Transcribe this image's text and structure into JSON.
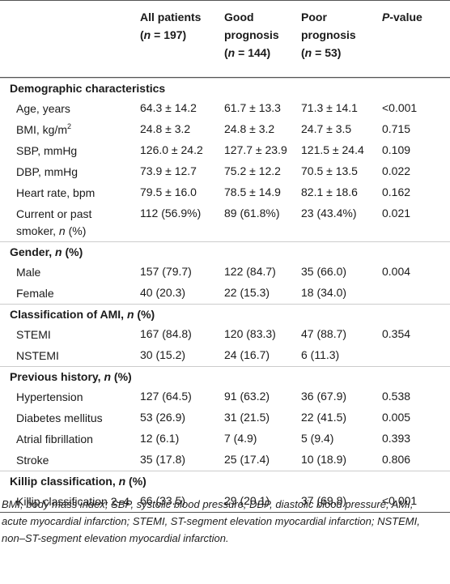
{
  "table": {
    "columns": [
      [
        [
          "All patients"
        ],
        [
          "(",
          {
            "text": "n",
            "style": "italic"
          },
          " = 197)"
        ]
      ],
      [
        [
          "Good"
        ],
        [
          "prognosis"
        ],
        [
          "(",
          {
            "text": "n",
            "style": "italic"
          },
          " = 144)"
        ]
      ],
      [
        [
          "Poor"
        ],
        [
          "prognosis"
        ],
        [
          "(",
          {
            "text": "n",
            "style": "italic"
          },
          " = 53)"
        ]
      ],
      [
        [
          {
            "text": "P",
            "style": "italic"
          },
          "-value"
        ]
      ]
    ],
    "sections": [
      {
        "title": [
          "Demographic characteristics"
        ],
        "rows": [
          [
            [
              "Age, years"
            ],
            "64.3 ± 14.2",
            "61.7 ± 13.3",
            "71.3 ± 14.1",
            "<0.001"
          ],
          [
            [
              "BMI, kg/m",
              {
                "text": "2",
                "style": "sup"
              }
            ],
            "24.8 ± 3.2",
            "24.8 ± 3.2",
            "24.7 ± 3.5",
            "0.715"
          ],
          [
            [
              "SBP, mmHg"
            ],
            "126.0 ± 24.2",
            "127.7 ± 23.9",
            "121.5 ± 24.4",
            "0.109"
          ],
          [
            [
              "DBP, mmHg"
            ],
            "73.9 ± 12.7",
            "75.2 ± 12.2",
            "70.5 ± 13.5",
            "0.022"
          ],
          [
            [
              "Heart rate, bpm"
            ],
            "79.5 ± 16.0",
            "78.5 ± 14.9",
            "82.1 ± 18.6",
            "0.162"
          ],
          [
            [
              "Current or past smoker, ",
              {
                "text": "n",
                "style": "italic"
              },
              " (%)"
            ],
            "112 (56.9%)",
            "89 (61.8%)",
            "23 (43.4%)",
            "0.021"
          ]
        ]
      },
      {
        "title": [
          "Gender, ",
          {
            "text": "n",
            "style": "italic"
          },
          " (%)"
        ],
        "rows": [
          [
            [
              "Male"
            ],
            "157 (79.7)",
            "122 (84.7)",
            "35 (66.0)",
            "0.004"
          ],
          [
            [
              "Female"
            ],
            "40 (20.3)",
            "22 (15.3)",
            "18 (34.0)",
            ""
          ]
        ]
      },
      {
        "title": [
          "Classification of AMI, ",
          {
            "text": "n",
            "style": "italic"
          },
          " (%)"
        ],
        "rows": [
          [
            [
              "STEMI"
            ],
            "167 (84.8)",
            "120 (83.3)",
            "47 (88.7)",
            "0.354"
          ],
          [
            [
              "NSTEMI"
            ],
            "30 (15.2)",
            "24 (16.7)",
            "6 (11.3)",
            ""
          ]
        ]
      },
      {
        "title": [
          "Previous history, ",
          {
            "text": "n",
            "style": "italic"
          },
          " (%)"
        ],
        "rows": [
          [
            [
              "Hypertension"
            ],
            "127 (64.5)",
            "91 (63.2)",
            "36 (67.9)",
            "0.538"
          ],
          [
            [
              "Diabetes mellitus"
            ],
            "53 (26.9)",
            "31 (21.5)",
            "22 (41.5)",
            "0.005"
          ],
          [
            [
              "Atrial fibrillation"
            ],
            "12 (6.1)",
            "7 (4.9)",
            "5 (9.4)",
            "0.393"
          ],
          [
            [
              "Stroke"
            ],
            "35 (17.8)",
            "25 (17.4)",
            "10 (18.9)",
            "0.806"
          ]
        ]
      },
      {
        "title": [
          "Killip classification, ",
          {
            "text": "n",
            "style": "italic"
          },
          " (%)"
        ],
        "rows": [
          [
            [
              "Killip classification 2–4"
            ],
            "66 (33.5)",
            "29 (20.1)",
            "37 (69.8)",
            "<0.001"
          ]
        ]
      }
    ]
  },
  "footnote": "BMI, body mass index; SBP, systolic blood pressure; DBP, diastolic blood pressure; AMI, acute myocardial infarction; STEMI, ST-segment elevation myocardial infarction; NSTEMI, non–ST-segment elevation myocardial infarction."
}
